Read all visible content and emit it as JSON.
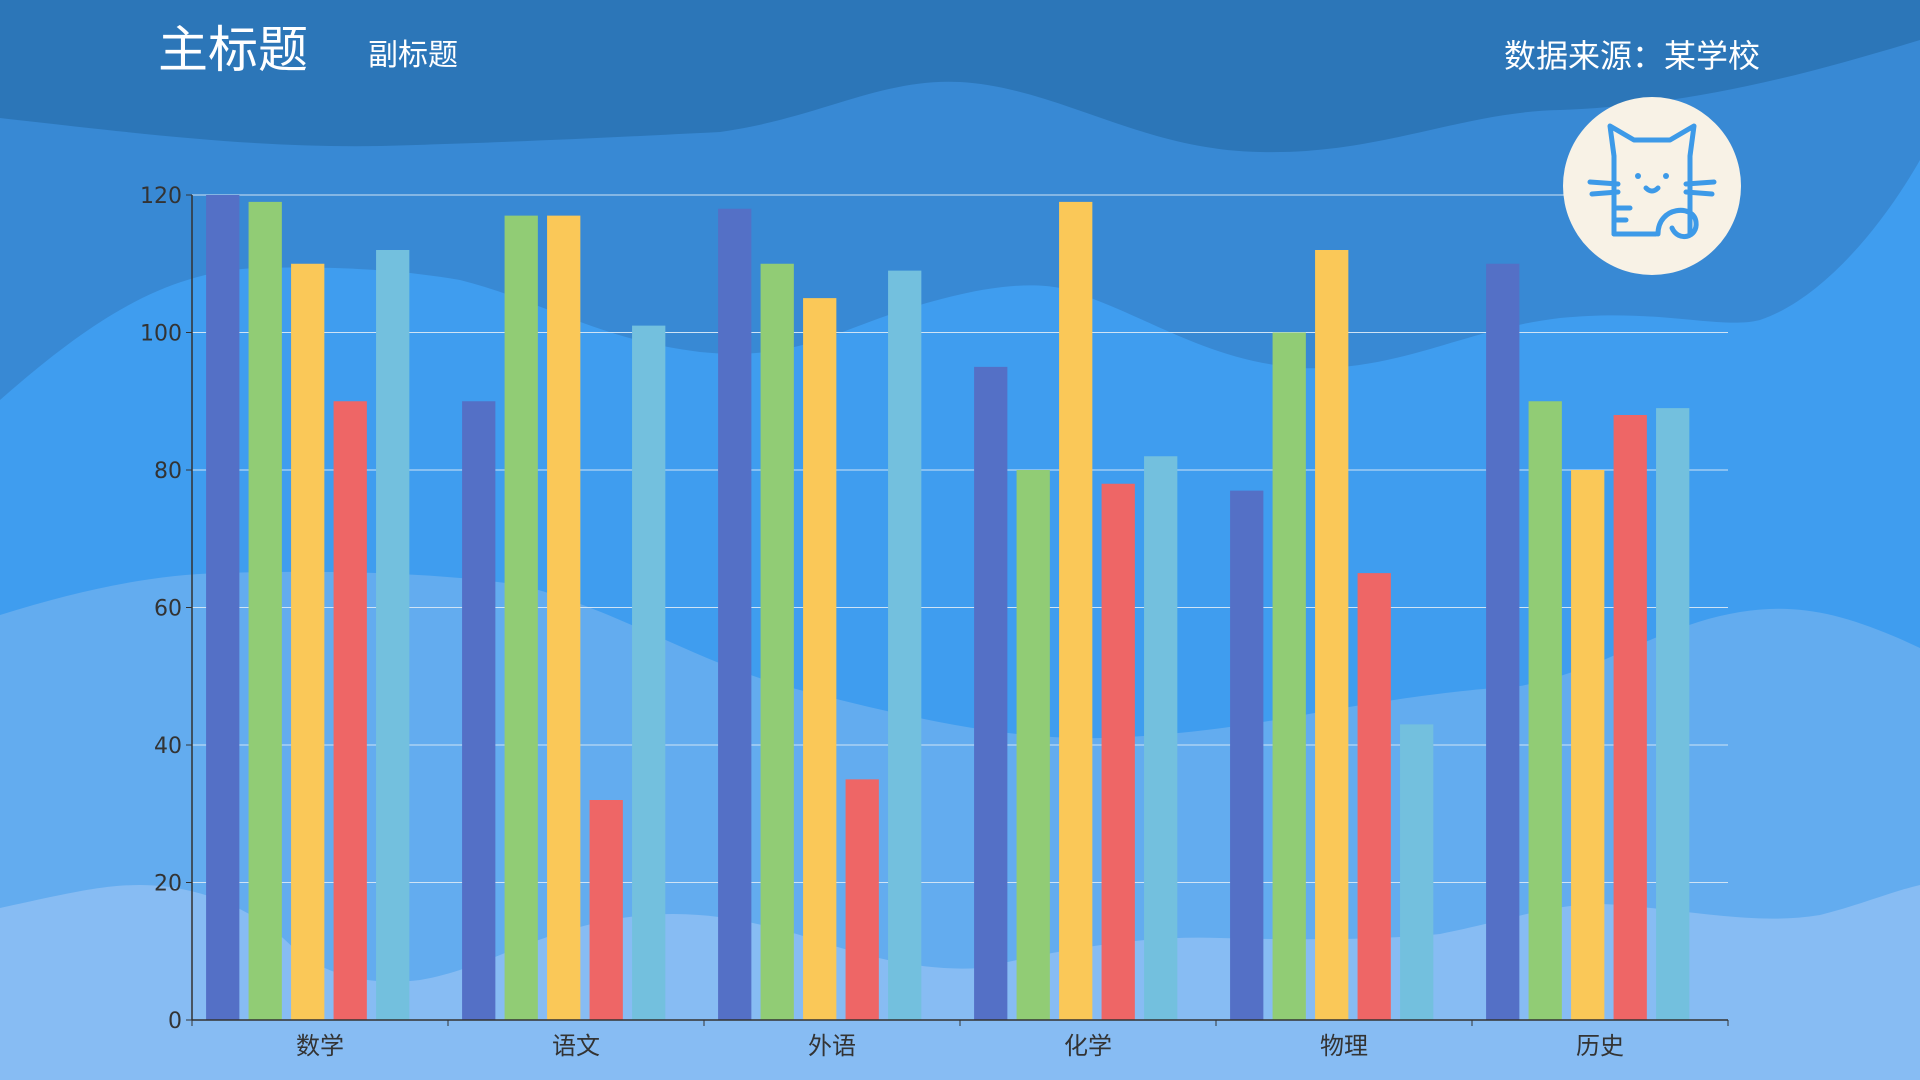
{
  "header": {
    "title": "主标题",
    "subtitle": "副标题",
    "source": "数据来源：某学校"
  },
  "logo": {
    "icon": "cat-icon",
    "background": "#f8f2e6",
    "stroke": "#3d9ae8"
  },
  "background_colors": [
    "#2c76b8",
    "#3889d4",
    "#3f9def",
    "#63acef",
    "#87bcf3"
  ],
  "chart_data": {
    "type": "bar",
    "categories": [
      "数学",
      "语文",
      "外语",
      "化学",
      "物理",
      "历史"
    ],
    "series": [
      {
        "values": [
          120,
          90,
          118,
          95,
          77,
          110
        ],
        "color": "#5470c6"
      },
      {
        "values": [
          119,
          117,
          110,
          80,
          100,
          90
        ],
        "color": "#91cc75"
      },
      {
        "values": [
          110,
          117,
          105,
          119,
          112,
          80
        ],
        "color": "#fac858"
      },
      {
        "values": [
          90,
          32,
          35,
          78,
          65,
          88
        ],
        "color": "#ee6666"
      },
      {
        "values": [
          112,
          101,
          109,
          82,
          43,
          89
        ],
        "color": "#73c0de"
      }
    ],
    "ylim": [
      0,
      120
    ],
    "yticks": [
      "0",
      "20",
      "40",
      "60",
      "80",
      "100",
      "120"
    ],
    "xlabel": "",
    "ylabel": "",
    "grid": true,
    "legend": "none"
  }
}
